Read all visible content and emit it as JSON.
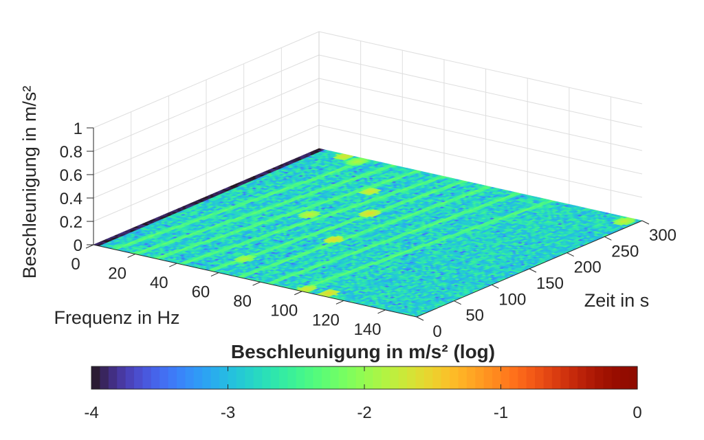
{
  "chart_data": {
    "type": "heatmap",
    "title": "",
    "view": "3d-surface-on-floor",
    "xlabel": "Frequenz in Hz",
    "ylabel": "Zeit in s",
    "zlabel": "Beschleunigung in m/s²",
    "xlim": [
      0,
      155
    ],
    "ylim": [
      0,
      300
    ],
    "zlim": [
      0,
      1
    ],
    "xticks": [
      "0",
      "20",
      "40",
      "60",
      "80",
      "100",
      "120",
      "140"
    ],
    "yticks": [
      "0",
      "50",
      "100",
      "150",
      "200",
      "250",
      "300"
    ],
    "zticks": [
      "0",
      "0.2",
      "0.4",
      "0.6",
      "0.8",
      "1"
    ],
    "colorbar": {
      "label": "Beschleunigung in m/s² (log)",
      "colormap": "turbo",
      "range": [
        -4,
        0
      ],
      "ticks": [
        "-4",
        "-3",
        "-2",
        "-1",
        "0"
      ],
      "placement": "bottom"
    },
    "grid": true,
    "typical_log_level": -2.8,
    "lowest_frequency_band": {
      "frequency_range_hz": [
        0,
        3
      ],
      "log_level": -4
    },
    "harmonic_ridges": [
      {
        "frequency_range_hz": [
          98,
          112
        ],
        "time_range_s": [
          0,
          300
        ],
        "log_level": -2.3
      },
      {
        "frequency_range_hz": [
          84,
          96
        ],
        "time_range_s": [
          0,
          300
        ],
        "log_level": -2.3
      },
      {
        "frequency_range_hz": [
          70,
          82
        ],
        "time_range_s": [
          0,
          300
        ],
        "log_level": -2.3
      },
      {
        "frequency_range_hz": [
          56,
          70
        ],
        "time_range_s": [
          0,
          300
        ],
        "log_level": -2.3
      },
      {
        "frequency_range_hz": [
          42,
          60
        ],
        "time_range_s": [
          0,
          300
        ],
        "log_level": -2.3
      },
      {
        "frequency_range_hz": [
          30,
          48
        ],
        "time_range_s": [
          0,
          300
        ],
        "log_level": -2.3
      },
      {
        "frequency_range_hz": [
          20,
          36
        ],
        "time_range_s": [
          0,
          300
        ],
        "log_level": -2.3
      },
      {
        "frequency_range_hz": [
          10,
          24
        ],
        "time_range_s": [
          0,
          300
        ],
        "log_level": -2.3
      }
    ],
    "hotspots": [
      {
        "frequency_hz": 110,
        "time_s": 8,
        "log_level": -1.5
      },
      {
        "frequency_hz": 100,
        "time_s": 6,
        "log_level": -1.6
      },
      {
        "frequency_hz": 72,
        "time_s": 120,
        "log_level": -1.5
      },
      {
        "frequency_hz": 64,
        "time_s": 190,
        "log_level": -1.5
      },
      {
        "frequency_hz": 48,
        "time_s": 235,
        "log_level": -1.6
      },
      {
        "frequency_hz": 46,
        "time_s": 160,
        "log_level": -1.7
      },
      {
        "frequency_hz": 22,
        "time_s": 290,
        "log_level": -1.8
      },
      {
        "frequency_hz": 14,
        "time_s": 295,
        "log_level": -1.6
      },
      {
        "frequency_hz": 58,
        "time_s": 40,
        "log_level": -1.8
      },
      {
        "frequency_hz": 150,
        "time_s": 290,
        "log_level": -1.7
      }
    ]
  }
}
